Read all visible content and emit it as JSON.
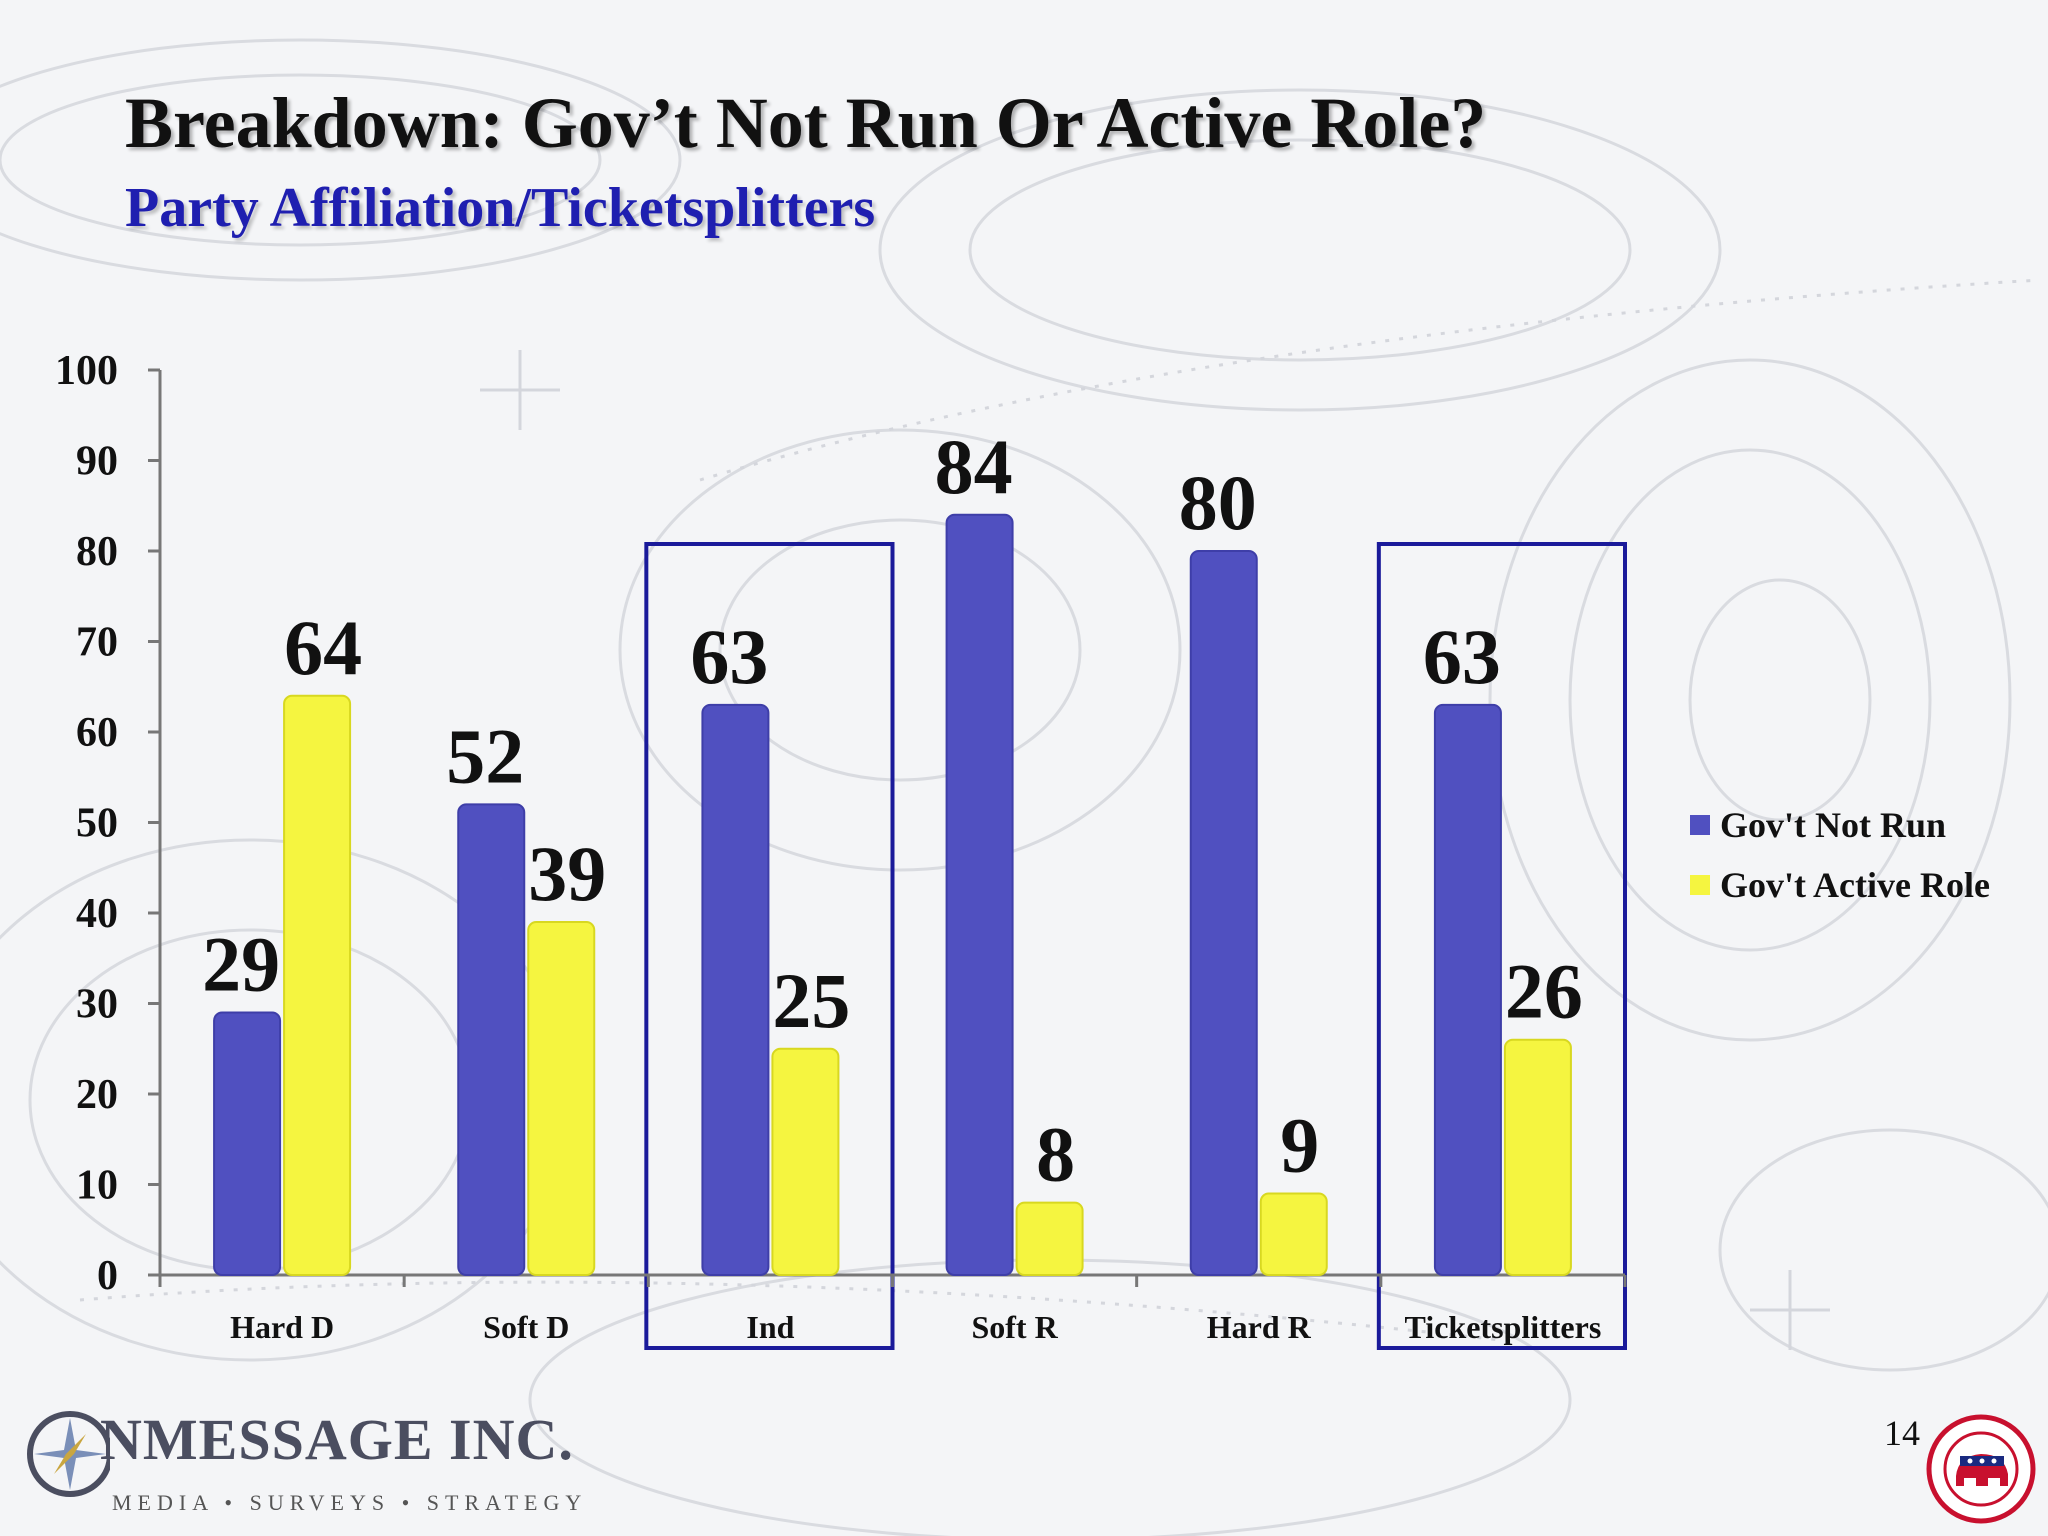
{
  "slide": {
    "title": "Breakdown: Gov’t Not Run Or Active Role?",
    "subtitle": "Party Affiliation/Ticketsplitters",
    "page_number": "14"
  },
  "logo": {
    "name": "NMESSAGE INC.",
    "tagline": "MEDIA • SURVEYS • STRATEGY"
  },
  "colors": {
    "series1": "#5050c0",
    "series2": "#f5f540",
    "highlight_box": "#1a1a9a"
  },
  "chart_data": {
    "type": "bar",
    "categories": [
      "Hard D",
      "Soft D",
      "Ind",
      "Soft R",
      "Hard R",
      "Ticketsplitters"
    ],
    "series": [
      {
        "name": "Gov't Not Run",
        "values": [
          29,
          52,
          63,
          84,
          80,
          63
        ]
      },
      {
        "name": "Gov't Active Role",
        "values": [
          64,
          39,
          25,
          8,
          9,
          26
        ]
      }
    ],
    "ylim": [
      0,
      100
    ],
    "yticks": [
      0,
      10,
      20,
      30,
      40,
      50,
      60,
      70,
      80,
      90,
      100
    ],
    "highlighted_categories": [
      "Ind",
      "Ticketsplitters"
    ],
    "legend": "right",
    "grid": false
  }
}
